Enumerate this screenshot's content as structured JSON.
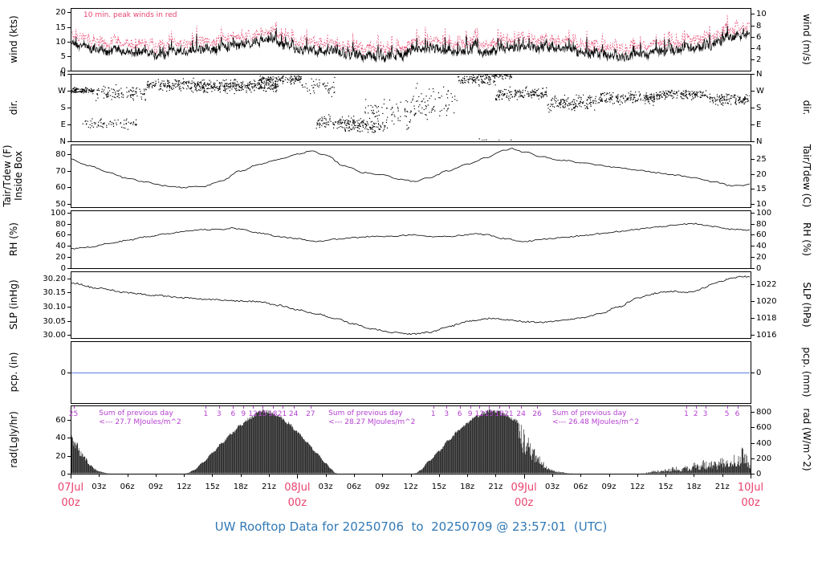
{
  "title": "UW Rooftop Data for 20250706  to  20250709 @ 23:57:01  (UTC)",
  "colors": {
    "peak": "#e8436e",
    "date": "#e8436e",
    "annotation": "#b53fd1",
    "title": "#3279b5",
    "pcp": "#5b7fe0",
    "series": "#000000"
  },
  "chart_data": {
    "type": "multi_panel_timeseries",
    "wind_note": "10 min. peak winds in red",
    "x_axis": {
      "end_hour": 72,
      "z_label": "00z",
      "minor_labels": [
        "03z",
        "06z",
        "09z",
        "12z",
        "15z",
        "18z",
        "21z"
      ],
      "days": [
        {
          "t": 0,
          "date": "07Jul"
        },
        {
          "t": 24,
          "date": "08Jul"
        },
        {
          "t": 48,
          "date": "09Jul"
        },
        {
          "t": 72,
          "date": "10Jul"
        }
      ]
    },
    "panels": [
      {
        "id": "wind",
        "plot": "line",
        "left_title": "wind (kts)",
        "right_title": "wind (m/s)",
        "range": [
          0,
          21.5
        ],
        "left_ticks": [
          {
            "v": 0,
            "l": "0"
          },
          {
            "v": 5,
            "l": "5"
          },
          {
            "v": 10,
            "l": "10"
          },
          {
            "v": 15,
            "l": "15"
          },
          {
            "v": 20,
            "l": "20"
          }
        ],
        "right_ticks": [
          {
            "v": 3.889,
            "l": "2"
          },
          {
            "v": 7.778,
            "l": "4"
          },
          {
            "v": 11.666,
            "l": "6"
          },
          {
            "v": 15.555,
            "l": "8"
          },
          {
            "v": 19.444,
            "l": "10"
          }
        ]
      },
      {
        "id": "dir",
        "plot": "scatter",
        "left_title": "dir.",
        "right_title": "dir.",
        "range": [
          0,
          360
        ],
        "left_ticks": [
          {
            "v": 360,
            "l": "N"
          },
          {
            "v": 270,
            "l": "W"
          },
          {
            "v": 180,
            "l": "S"
          },
          {
            "v": 90,
            "l": "E"
          },
          {
            "v": 0,
            "l": "N"
          }
        ],
        "right_ticks": [
          {
            "v": 360,
            "l": "N"
          },
          {
            "v": 270,
            "l": "W"
          },
          {
            "v": 180,
            "l": "S"
          },
          {
            "v": 90,
            "l": "E"
          },
          {
            "v": 0,
            "l": "N"
          }
        ]
      },
      {
        "id": "temp",
        "plot": "line",
        "left_title": "Tair/Tdew (F)",
        "left_title2": "Inside Box",
        "right_title": "Tair/Tdew (C)",
        "range": [
          48,
          86
        ],
        "left_ticks": [
          {
            "v": 50,
            "l": "50"
          },
          {
            "v": 60,
            "l": "60"
          },
          {
            "v": 70,
            "l": "70"
          },
          {
            "v": 80,
            "l": "80"
          }
        ],
        "right_ticks": [
          {
            "v": 50,
            "l": "10"
          },
          {
            "v": 59,
            "l": "15"
          },
          {
            "v": 68,
            "l": "20"
          },
          {
            "v": 77,
            "l": "25"
          }
        ]
      },
      {
        "id": "rh",
        "plot": "line",
        "left_title": "RH (%)",
        "right_title": "RH (%)",
        "range": [
          0,
          104
        ],
        "left_ticks": [
          {
            "v": 0,
            "l": "0"
          },
          {
            "v": 20,
            "l": "20"
          },
          {
            "v": 40,
            "l": "40"
          },
          {
            "v": 60,
            "l": "60"
          },
          {
            "v": 80,
            "l": "80"
          },
          {
            "v": 100,
            "l": "100"
          }
        ],
        "right_ticks": [
          {
            "v": 0,
            "l": "0"
          },
          {
            "v": 20,
            "l": "20"
          },
          {
            "v": 40,
            "l": "40"
          },
          {
            "v": 60,
            "l": "60"
          },
          {
            "v": 80,
            "l": "80"
          },
          {
            "v": 100,
            "l": "100"
          }
        ]
      },
      {
        "id": "slp",
        "plot": "line",
        "left_title": "SLP (inHg)",
        "right_title": "SLP (hPa)",
        "range": [
          29.99,
          30.225
        ],
        "left_ticks": [
          {
            "v": 30.0,
            "l": "30.00"
          },
          {
            "v": 30.05,
            "l": "30.05"
          },
          {
            "v": 30.1,
            "l": "30.10"
          },
          {
            "v": 30.15,
            "l": "30.15"
          },
          {
            "v": 30.2,
            "l": "30.20"
          }
        ],
        "right_ticks": [
          {
            "v": 30.0024,
            "l": "1016"
          },
          {
            "v": 30.0615,
            "l": "1018"
          },
          {
            "v": 30.1205,
            "l": "1020"
          },
          {
            "v": 30.1796,
            "l": "1022"
          }
        ]
      },
      {
        "id": "pcp",
        "plot": "line",
        "left_title": "pcp. (in)",
        "right_title": "pcp. (mm)",
        "range": [
          -1,
          1
        ],
        "left_ticks": [
          {
            "v": 0,
            "l": "0"
          }
        ],
        "right_ticks": [
          {
            "v": 0,
            "l": "0"
          }
        ]
      },
      {
        "id": "rad",
        "plot": "area",
        "left_title": "rad(Lgly/hr)",
        "right_title": "rad (W/m^2)",
        "range": [
          0,
          76
        ],
        "left_ticks": [
          {
            "v": 0,
            "l": "0"
          },
          {
            "v": 20,
            "l": "20"
          },
          {
            "v": 40,
            "l": "40"
          },
          {
            "v": 60,
            "l": "60"
          }
        ],
        "right_ticks": [
          {
            "v": 0,
            "l": "0"
          },
          {
            "v": 17.2,
            "l": "200"
          },
          {
            "v": 34.4,
            "l": "400"
          },
          {
            "v": 51.6,
            "l": "600"
          },
          {
            "v": 68.8,
            "l": "800"
          }
        ]
      }
    ],
    "series": {
      "wind_mean_kts": {
        "h": [
          0,
          2,
          4,
          6,
          8,
          10,
          12,
          14,
          16,
          18,
          20,
          21,
          22,
          24,
          26,
          28,
          30,
          32,
          33,
          35,
          36,
          38,
          40,
          42,
          44,
          46,
          48,
          50,
          52,
          54,
          56,
          58,
          60,
          62,
          64,
          66,
          68,
          70,
          71,
          72
        ],
        "v": [
          9.5,
          8,
          7,
          6.5,
          5.8,
          6,
          6.8,
          7,
          7.8,
          9,
          10,
          11,
          9.5,
          7.5,
          7,
          6.5,
          5.5,
          4.5,
          4.2,
          5,
          6.5,
          7.2,
          6.8,
          6.2,
          6.5,
          7.5,
          8.3,
          8,
          7.4,
          6.6,
          5.6,
          5,
          5.4,
          6.2,
          7.2,
          8,
          9,
          11.5,
          12.5,
          13
        ]
      },
      "wind_peak_offset_kts": 1.8,
      "direction_segments": [
        [
          0,
          2.5,
          270,
          15,
          40
        ],
        [
          1,
          7,
          95,
          25,
          12
        ],
        [
          2.5,
          8,
          255,
          35,
          20
        ],
        [
          8,
          13,
          300,
          28,
          28
        ],
        [
          13,
          22,
          295,
          33,
          40
        ],
        [
          20,
          24.5,
          330,
          22,
          30
        ],
        [
          24.5,
          28,
          290,
          45,
          14
        ],
        [
          26,
          31,
          100,
          35,
          24
        ],
        [
          29,
          33.5,
          75,
          30,
          20
        ],
        [
          31,
          36,
          150,
          75,
          16
        ],
        [
          36,
          41,
          200,
          85,
          16
        ],
        [
          41,
          45,
          330,
          28,
          24
        ],
        [
          43,
          47,
          350,
          18,
          16
        ],
        [
          45,
          50.5,
          250,
          35,
          28
        ],
        [
          50.5,
          56,
          205,
          38,
          28
        ],
        [
          56,
          62,
          230,
          28,
          30
        ],
        [
          62,
          67.5,
          250,
          22,
          30
        ],
        [
          67.5,
          72,
          225,
          28,
          30
        ]
      ],
      "tair_f": {
        "h": [
          0,
          2,
          4,
          6,
          8,
          10,
          12,
          14,
          16,
          18,
          20,
          22,
          24,
          25.5,
          27,
          29,
          31,
          33,
          35,
          36.5,
          38,
          40,
          42,
          44,
          46,
          46.8,
          48,
          50,
          52,
          54,
          56,
          58,
          60,
          62,
          64,
          66,
          68,
          70,
          71,
          72
        ],
        "v": [
          77,
          73,
          69,
          65.5,
          63,
          61,
          60,
          60.5,
          64,
          70,
          74,
          77,
          80,
          82,
          79.5,
          73,
          69,
          67.5,
          65,
          63.5,
          66,
          70,
          74,
          78,
          82.5,
          83.5,
          81.5,
          78.5,
          76.5,
          75,
          73.5,
          72,
          70.5,
          69,
          67.5,
          66,
          63.5,
          61,
          61,
          62
        ]
      },
      "rh_pct": {
        "h": [
          0,
          2,
          4,
          6,
          8,
          10,
          12,
          14,
          16,
          17,
          18,
          20,
          22,
          24,
          26,
          28,
          30,
          32,
          34,
          36,
          38,
          40,
          42,
          43,
          44,
          46,
          48,
          50,
          52,
          54,
          56,
          58,
          60,
          62,
          64,
          65,
          66,
          68,
          70,
          72
        ],
        "v": [
          35,
          38,
          44,
          50,
          56,
          62,
          66,
          69,
          70,
          72,
          70,
          63,
          57,
          53,
          48,
          52,
          55,
          57,
          57,
          60,
          57,
          57,
          60,
          62,
          60,
          53,
          48,
          52,
          55,
          58,
          62,
          66,
          70,
          74,
          77,
          79,
          80,
          75,
          70,
          68
        ]
      },
      "slp_inhg": {
        "h": [
          0,
          3,
          6,
          9,
          12,
          15,
          18,
          20,
          22,
          24,
          26,
          28,
          30,
          32,
          34,
          36,
          38,
          40,
          42,
          44,
          45,
          46,
          48,
          50,
          52,
          54,
          56,
          58,
          60,
          61,
          62,
          63,
          64,
          65,
          66,
          67,
          68,
          69,
          70,
          71,
          72
        ],
        "v": [
          30.185,
          30.165,
          30.15,
          30.14,
          30.132,
          30.125,
          30.12,
          30.118,
          30.105,
          30.09,
          30.075,
          30.06,
          30.04,
          30.022,
          30.01,
          30.004,
          30.01,
          30.03,
          30.048,
          30.058,
          30.06,
          30.055,
          30.048,
          30.045,
          30.052,
          30.06,
          30.075,
          30.1,
          30.13,
          30.14,
          30.148,
          30.152,
          30.155,
          30.15,
          30.155,
          30.165,
          30.18,
          30.192,
          30.2,
          30.207,
          30.205
        ]
      },
      "pcp_in": 0,
      "rad_lyhr": {
        "h": [
          0,
          0.5,
          1,
          1.5,
          2,
          2.5,
          3,
          3.5,
          4,
          4.3,
          12,
          12.4,
          13,
          14,
          15,
          16,
          17,
          18,
          19,
          20,
          20.3,
          21,
          22,
          23,
          24,
          25,
          26,
          27,
          27.5,
          28,
          28.4,
          36.2,
          36.6,
          37,
          38,
          39,
          40,
          41,
          42,
          43,
          44,
          44.5,
          45,
          46,
          47,
          47.5,
          48,
          48.5,
          49,
          49.5,
          50,
          50.5,
          51,
          51.5,
          52,
          52.5,
          53,
          53.3,
          60.2,
          60.6,
          61,
          62,
          63,
          64,
          64.5,
          65,
          65.5,
          66,
          66.5,
          67,
          67.5,
          68,
          68.5,
          69,
          69.5,
          70,
          70.5,
          71,
          71.5,
          72
        ],
        "v": [
          44,
          38,
          28,
          20,
          12,
          6,
          3,
          1.5,
          0.5,
          0,
          0,
          1,
          4,
          13,
          24,
          35,
          46,
          56,
          64,
          71,
          72,
          71,
          66,
          58,
          48,
          36,
          24,
          12,
          6,
          1,
          0,
          0,
          1,
          4,
          15,
          26,
          38,
          49,
          58,
          66,
          71,
          73,
          72,
          68,
          62,
          58,
          50,
          40,
          30,
          22,
          14,
          8,
          5,
          3,
          2,
          1,
          0.5,
          0,
          0,
          0.5,
          1.5,
          4,
          6,
          8,
          6,
          10,
          8,
          14,
          10,
          16,
          12,
          18,
          14,
          22,
          18,
          26,
          20,
          30,
          24,
          14
        ]
      },
      "rad_spiky": [
        [
          0.2,
          4,
          0.7
        ],
        [
          47.4,
          53.4,
          0.45
        ],
        [
          60,
          72,
          0.3
        ]
      ]
    },
    "rad_annotations": {
      "sums": [
        {
          "t": 3.0,
          "lines": [
            "Sum of previous day",
            "<--- 27.7 MJoules/m^2"
          ]
        },
        {
          "t": 27.3,
          "lines": [
            "Sum of previous day",
            "<--- 28.27 MJoules/m^2"
          ]
        },
        {
          "t": 51.0,
          "lines": [
            "Sum of previous day",
            "<--- 26.48 MJoules/m^2"
          ]
        }
      ],
      "cum_ticks": [
        {
          "t": 0.3,
          "l": "25"
        },
        {
          "t": 14.3,
          "l": "1"
        },
        {
          "t": 15.7,
          "l": "3"
        },
        {
          "t": 17.2,
          "l": "6"
        },
        {
          "t": 18.3,
          "l": "9"
        },
        {
          "t": 19.3,
          "l": "12"
        },
        {
          "t": 20.3,
          "l": "15"
        },
        {
          "t": 21.4,
          "l": "18"
        },
        {
          "t": 22.4,
          "l": "21"
        },
        {
          "t": 23.6,
          "l": "24"
        },
        {
          "t": 25.4,
          "l": "27"
        },
        {
          "t": 38.4,
          "l": "1"
        },
        {
          "t": 39.8,
          "l": "3"
        },
        {
          "t": 41.2,
          "l": "6"
        },
        {
          "t": 42.3,
          "l": "9"
        },
        {
          "t": 43.3,
          "l": "12"
        },
        {
          "t": 44.3,
          "l": "15"
        },
        {
          "t": 45.4,
          "l": "18"
        },
        {
          "t": 46.4,
          "l": "21"
        },
        {
          "t": 47.7,
          "l": "24"
        },
        {
          "t": 49.4,
          "l": "26"
        },
        {
          "t": 65.2,
          "l": "1"
        },
        {
          "t": 66.2,
          "l": "2"
        },
        {
          "t": 67.2,
          "l": "3"
        },
        {
          "t": 69.5,
          "l": "5"
        },
        {
          "t": 70.6,
          "l": "6"
        }
      ]
    }
  }
}
